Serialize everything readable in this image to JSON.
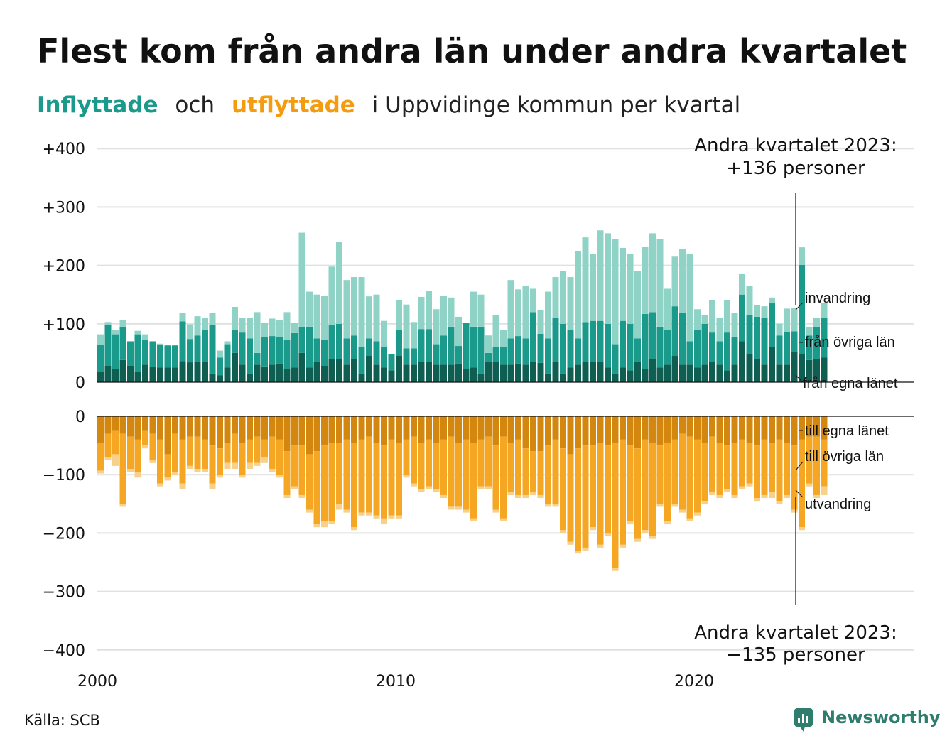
{
  "title": "Flest kom från andra län under andra kvartalet",
  "subtitle": {
    "in_word": "Inflyttade",
    "and_word": "och",
    "out_word": "utflyttade",
    "rest": "i Uppvidinge kommun per kvartal"
  },
  "source": "Källa: SCB",
  "brand": "Newsworthy",
  "colors": {
    "in_own": "#0f5e52",
    "in_other": "#1a9a8a",
    "in_immig": "#8fd3c7",
    "out_own": "#d4870e",
    "out_other": "#f5a623",
    "out_emig": "#f7d08a",
    "grid": "#e0e0e0"
  },
  "annotations": {
    "top": [
      "Andra kvartalet 2023:",
      "+136 personer"
    ],
    "bottom": [
      "Andra kvartalet 2023:",
      "−135 personer"
    ]
  },
  "segment_labels": {
    "in": [
      "invandring",
      "från övriga län",
      "från egna länet"
    ],
    "out": [
      "till egna länet",
      "till övriga län",
      "utvandring"
    ]
  },
  "chart_data": [
    {
      "type": "bar",
      "stacked": true,
      "title": "Inflyttade",
      "x_start": "2000-Q1",
      "x_end": "2023-Q2",
      "x_ticks": [
        "2000",
        "2010",
        "2020"
      ],
      "y_ticks": [
        "+400",
        "+300",
        "+200",
        "+100",
        "0"
      ],
      "ylim": [
        0,
        400
      ],
      "series": [
        {
          "name": "från egna länet",
          "values": [
            18,
            28,
            22,
            38,
            28,
            18,
            30,
            26,
            25,
            25,
            25,
            36,
            34,
            35,
            35,
            15,
            12,
            25,
            50,
            30,
            15,
            30,
            27,
            30,
            32,
            22,
            25,
            50,
            25,
            35,
            28,
            40,
            40,
            30,
            40,
            15,
            45,
            30,
            25,
            20,
            45,
            30,
            30,
            35,
            35,
            30,
            30,
            30,
            32,
            22,
            25,
            15,
            35,
            35,
            30,
            30,
            32,
            30,
            35,
            33,
            15,
            35,
            15,
            25,
            30,
            35,
            35,
            35,
            25,
            15,
            25,
            20,
            35,
            22,
            40,
            25,
            30,
            45,
            30,
            30,
            25,
            30,
            35,
            30,
            20,
            30,
            70,
            48,
            40,
            30,
            60,
            30,
            30,
            52,
            48,
            38,
            40,
            42
          ]
        },
        {
          "name": "från övriga län",
          "values": [
            46,
            70,
            60,
            57,
            42,
            64,
            42,
            44,
            39,
            38,
            38,
            68,
            40,
            45,
            55,
            83,
            30,
            40,
            39,
            55,
            60,
            20,
            50,
            49,
            45,
            50,
            59,
            44,
            70,
            40,
            45,
            58,
            60,
            45,
            40,
            45,
            30,
            40,
            35,
            28,
            45,
            28,
            28,
            56,
            56,
            35,
            50,
            65,
            30,
            80,
            70,
            80,
            15,
            25,
            30,
            45,
            47,
            45,
            85,
            50,
            60,
            75,
            85,
            65,
            45,
            68,
            70,
            70,
            75,
            50,
            80,
            80,
            40,
            95,
            80,
            70,
            60,
            85,
            88,
            40,
            65,
            70,
            50,
            40,
            65,
            48,
            80,
            67,
            72,
            80,
            75,
            50,
            56,
            35,
            153,
            42,
            55,
            68
          ]
        },
        {
          "name": "invandring",
          "values": [
            18,
            5,
            8,
            12,
            0,
            6,
            10,
            0,
            2,
            0,
            0,
            15,
            25,
            33,
            20,
            20,
            12,
            5,
            40,
            25,
            35,
            70,
            25,
            30,
            30,
            48,
            18,
            162,
            60,
            75,
            75,
            100,
            140,
            100,
            100,
            120,
            72,
            80,
            45,
            0,
            50,
            75,
            45,
            55,
            65,
            60,
            68,
            50,
            50,
            0,
            60,
            55,
            30,
            55,
            30,
            100,
            80,
            90,
            40,
            40,
            80,
            70,
            90,
            90,
            150,
            145,
            115,
            155,
            155,
            180,
            125,
            120,
            115,
            115,
            135,
            150,
            70,
            85,
            110,
            150,
            35,
            15,
            55,
            40,
            55,
            40,
            35,
            50,
            20,
            20,
            10,
            20,
            40,
            40,
            30,
            15,
            15,
            26
          ]
        }
      ]
    },
    {
      "type": "bar",
      "stacked": true,
      "title": "Utflyttade",
      "x_start": "2000-Q1",
      "x_end": "2023-Q2",
      "y_ticks": [
        "0",
        "−100",
        "−200",
        "−300",
        "−400"
      ],
      "ylim": [
        -400,
        0
      ],
      "series": [
        {
          "name": "till egna länet",
          "values": [
            -45,
            -30,
            -25,
            -30,
            -35,
            -40,
            -25,
            -30,
            -40,
            -65,
            -30,
            -40,
            -35,
            -35,
            -40,
            -50,
            -55,
            -45,
            -30,
            -45,
            -40,
            -35,
            -40,
            -35,
            -40,
            -60,
            -50,
            -50,
            -65,
            -60,
            -50,
            -45,
            -45,
            -40,
            -45,
            -40,
            -35,
            -45,
            -50,
            -40,
            -45,
            -40,
            -35,
            -45,
            -40,
            -45,
            -40,
            -35,
            -45,
            -40,
            -45,
            -40,
            -35,
            -50,
            -35,
            -45,
            -40,
            -55,
            -60,
            -60,
            -50,
            -40,
            -55,
            -65,
            -55,
            -50,
            -50,
            -45,
            -50,
            -45,
            -40,
            -50,
            -55,
            -40,
            -45,
            -50,
            -45,
            -40,
            -30,
            -35,
            -40,
            -45,
            -35,
            -45,
            -50,
            -45,
            -40,
            -45,
            -50,
            -40,
            -45,
            -40,
            -45,
            -50,
            -40,
            -35,
            -35,
            -40
          ]
        },
        {
          "name": "till övriga län",
          "values": [
            -48,
            -40,
            -40,
            -120,
            -55,
            -55,
            -25,
            -45,
            -75,
            -40,
            -65,
            -75,
            -50,
            -55,
            -50,
            -65,
            -45,
            -35,
            -50,
            -55,
            -40,
            -45,
            -30,
            -55,
            -60,
            -75,
            -70,
            -85,
            -95,
            -125,
            -130,
            -135,
            -105,
            -120,
            -145,
            -125,
            -130,
            -125,
            -125,
            -130,
            -125,
            -60,
            -80,
            -80,
            -80,
            -80,
            -95,
            -120,
            -110,
            -120,
            -130,
            -80,
            -85,
            -110,
            -140,
            -85,
            -95,
            -80,
            -70,
            -75,
            -100,
            -110,
            -140,
            -150,
            -175,
            -175,
            -140,
            -175,
            -150,
            -215,
            -180,
            -130,
            -155,
            -155,
            -160,
            -100,
            -135,
            -110,
            -130,
            -140,
            -125,
            -100,
            -95,
            -90,
            -75,
            -90,
            -80,
            -70,
            -90,
            -95,
            -85,
            -105,
            -90,
            -110,
            -150,
            -80,
            -100,
            -80
          ]
        },
        {
          "name": "utvandring",
          "values": [
            -5,
            -5,
            -20,
            -5,
            -5,
            -10,
            -5,
            -5,
            -5,
            -5,
            -5,
            -10,
            -5,
            -5,
            -5,
            -10,
            -5,
            -10,
            -10,
            -5,
            -10,
            -5,
            -10,
            -5,
            -5,
            -5,
            -5,
            -5,
            -5,
            -5,
            -10,
            -5,
            -10,
            -5,
            -5,
            -5,
            -5,
            -5,
            -10,
            -5,
            -5,
            -5,
            -5,
            -5,
            -5,
            -5,
            -5,
            -5,
            -5,
            -5,
            -5,
            -5,
            -5,
            -5,
            -5,
            -5,
            -5,
            -5,
            -5,
            -5,
            -5,
            -5,
            -5,
            -5,
            -5,
            -5,
            -5,
            -5,
            -5,
            -5,
            -5,
            -5,
            -5,
            -5,
            -5,
            -5,
            -5,
            -5,
            -5,
            -5,
            -5,
            -5,
            -5,
            -5,
            -5,
            -5,
            -5,
            -5,
            -5,
            -5,
            -10,
            -5,
            -5,
            -5,
            -5,
            -5,
            -5,
            -15
          ]
        }
      ]
    }
  ]
}
